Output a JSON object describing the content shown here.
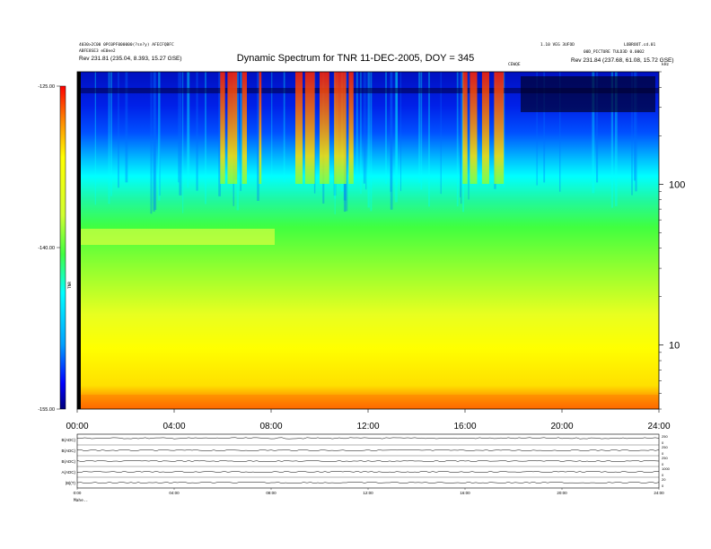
{
  "header": {
    "title": "Dynamic Spectrum for TNR 11-DEC-2005, DOY = 345",
    "top_left_line1": "4030>2C00 0PC0PF000000(?sn?y) AFECFQBFC",
    "top_left_line2": "ABFE8SE3 eE0ee2",
    "top_left_rev": "Rev  231.81 (235.04, 8.393, 15.27 GSE)",
    "top_right_line1": "1.10 VEG 3UFOD",
    "top_right_line2": "LOBROOT.cd.01",
    "top_right_line3": "00D_PICTURE TULD3D 0.0002",
    "top_right_rev": "Rev  231.84 (237.68, 61.08, 15.72 GSE)",
    "marker_label": "CEWQE",
    "units_label": "kHz",
    "colorbar_axis_label": "TNR",
    "footer_label": "Mahe.."
  },
  "chart_data": {
    "type": "heatmap",
    "title": "Dynamic Spectrum for TNR 11-DEC-2005, DOY = 345",
    "x": {
      "ticks": [
        "00:00",
        "04:00",
        "08:00",
        "12:00",
        "16:00",
        "20:00",
        "24:00"
      ],
      "range_hours": [
        0,
        24
      ]
    },
    "y": {
      "scale": "log",
      "units": "kHz",
      "range": [
        4,
        500
      ],
      "ticks": [
        10,
        100
      ]
    },
    "colorbar": {
      "ticks": [
        "-125.00",
        "-140.00",
        "-155.00"
      ],
      "range": [
        -155,
        -125
      ],
      "colors": [
        "#000080",
        "#0000ff",
        "#00bfff",
        "#00ffff",
        "#40ff40",
        "#c8ff00",
        "#ffff00",
        "#ff8000",
        "#ff0000",
        "#b00000"
      ]
    },
    "bright_bursts_hours": [
      [
        5.9,
        6.1
      ],
      [
        6.2,
        6.6
      ],
      [
        6.8,
        7.0
      ],
      [
        7.5,
        7.6
      ],
      [
        9.0,
        9.3
      ],
      [
        9.4,
        9.8
      ],
      [
        10.0,
        10.4
      ],
      [
        10.6,
        11.1
      ],
      [
        11.2,
        11.4
      ],
      [
        15.9,
        16.1
      ],
      [
        16.2,
        16.5
      ],
      [
        16.7,
        17.0
      ],
      [
        17.2,
        17.6
      ]
    ],
    "lower_panel": {
      "rows": [
        "B(ADC)",
        "B(ADC)",
        "B(ADC)",
        "A(ADC)",
        "|B|(T)"
      ],
      "right_ticks": [
        [
          "250",
          "0"
        ],
        [
          "250",
          "0"
        ],
        [
          "250",
          "0"
        ],
        [
          "1000",
          "0"
        ],
        [
          "20",
          "0"
        ]
      ],
      "x_ticks": [
        "0:00",
        "04:00",
        "08:00",
        "12:00",
        "16:00",
        "20:00",
        "24:00"
      ]
    }
  }
}
